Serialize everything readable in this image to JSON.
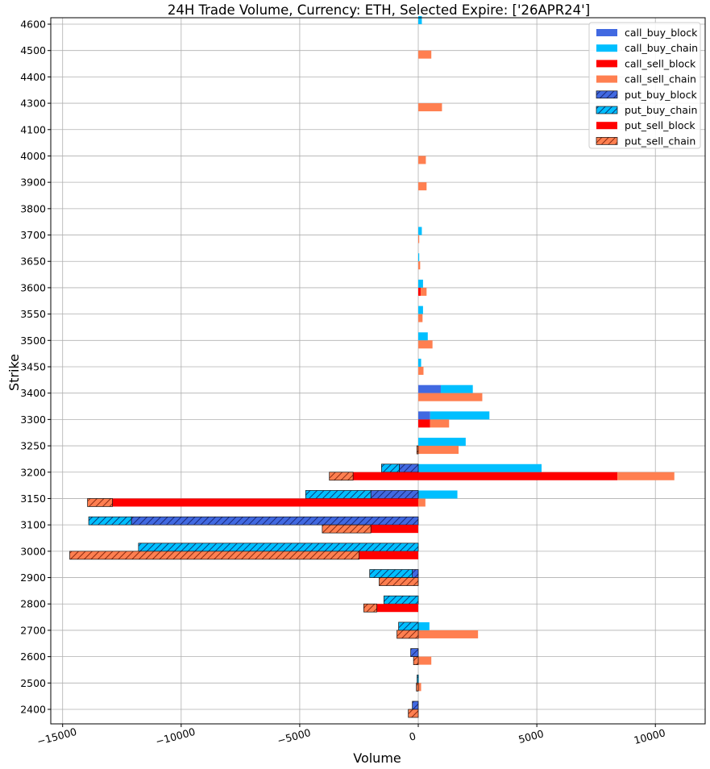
{
  "chart_data": {
    "type": "bar",
    "orientation": "horizontal",
    "title": "24H Trade Volume, Currency: ETH, Selected Expire: ['26APR24']",
    "xlabel": "Volume",
    "ylabel": "Strike",
    "xlim": [
      -15500,
      12100
    ],
    "xticks": [
      -15000,
      -10000,
      -5000,
      0,
      5000,
      10000
    ],
    "xtick_labels": [
      "−15000",
      "−10000",
      "−5000",
      "0",
      "5000",
      "10000"
    ],
    "grid": true,
    "legend_position": "top-right",
    "categories": [
      "2400",
      "2500",
      "2600",
      "2700",
      "2800",
      "2900",
      "3000",
      "3100",
      "3150",
      "3200",
      "3250",
      "3300",
      "3400",
      "3450",
      "3500",
      "3550",
      "3600",
      "3650",
      "3700",
      "3800",
      "3900",
      "4000",
      "4100",
      "4300",
      "4400",
      "4500",
      "4600"
    ],
    "series": [
      {
        "name": "call_buy_block",
        "color": "#4169e1",
        "hatch": false,
        "slot": "upper",
        "stack": "call_buy",
        "side": "positive",
        "values": [
          0,
          0,
          0,
          0,
          0,
          0,
          0,
          0,
          0,
          0,
          0,
          500,
          950,
          0,
          0,
          0,
          0,
          0,
          0,
          0,
          0,
          0,
          0,
          0,
          0,
          0,
          0
        ]
      },
      {
        "name": "call_buy_chain",
        "color": "#00bfff",
        "hatch": false,
        "slot": "upper",
        "stack": "call_buy",
        "side": "positive",
        "values": [
          0,
          20,
          0,
          470,
          0,
          0,
          0,
          0,
          1650,
          5200,
          2000,
          2500,
          1350,
          120,
          400,
          200,
          200,
          40,
          150,
          0,
          0,
          0,
          0,
          0,
          0,
          0,
          150
        ]
      },
      {
        "name": "call_sell_block",
        "color": "#ff0000",
        "hatch": false,
        "slot": "lower",
        "stack": "call_sell",
        "side": "positive",
        "values": [
          0,
          0,
          0,
          0,
          0,
          0,
          0,
          0,
          0,
          8400,
          0,
          500,
          0,
          0,
          0,
          0,
          100,
          0,
          0,
          0,
          0,
          0,
          0,
          0,
          0,
          0,
          0
        ]
      },
      {
        "name": "call_sell_chain",
        "color": "#ff7f50",
        "hatch": false,
        "slot": "lower",
        "stack": "call_sell",
        "side": "positive",
        "values": [
          0,
          120,
          550,
          2520,
          0,
          0,
          0,
          0,
          300,
          2400,
          1700,
          800,
          2700,
          220,
          600,
          180,
          250,
          80,
          40,
          0,
          350,
          320,
          0,
          1000,
          0,
          550,
          0
        ]
      },
      {
        "name": "put_buy_block",
        "color": "#4169e1",
        "hatch": true,
        "slot": "upper",
        "stack": "put_buy",
        "side": "negative",
        "values": [
          250,
          0,
          320,
          0,
          0,
          250,
          0,
          12100,
          2000,
          800,
          0,
          0,
          0,
          0,
          0,
          0,
          0,
          0,
          0,
          0,
          0,
          0,
          0,
          0,
          0,
          0,
          0
        ]
      },
      {
        "name": "put_buy_chain",
        "color": "#00bfff",
        "hatch": true,
        "slot": "upper",
        "stack": "put_buy",
        "side": "negative",
        "values": [
          0,
          50,
          0,
          830,
          1450,
          1800,
          11800,
          1800,
          2750,
          750,
          0,
          0,
          0,
          0,
          0,
          0,
          0,
          0,
          0,
          0,
          0,
          0,
          0,
          0,
          0,
          0,
          0
        ]
      },
      {
        "name": "put_sell_block",
        "color": "#ff0000",
        "hatch": false,
        "slot": "lower",
        "stack": "put_sell",
        "side": "negative",
        "values": [
          0,
          0,
          0,
          0,
          1750,
          0,
          2500,
          2000,
          12900,
          2750,
          0,
          0,
          0,
          0,
          0,
          0,
          0,
          0,
          0,
          0,
          0,
          0,
          0,
          0,
          0,
          0,
          0
        ]
      },
      {
        "name": "put_sell_chain",
        "color": "#ff7f50",
        "hatch": true,
        "slot": "lower",
        "stack": "put_sell",
        "side": "negative",
        "values": [
          420,
          80,
          200,
          900,
          550,
          1650,
          12200,
          2050,
          1050,
          1000,
          60,
          0,
          0,
          0,
          0,
          0,
          0,
          0,
          0,
          0,
          0,
          0,
          0,
          0,
          0,
          0,
          0
        ]
      }
    ]
  }
}
